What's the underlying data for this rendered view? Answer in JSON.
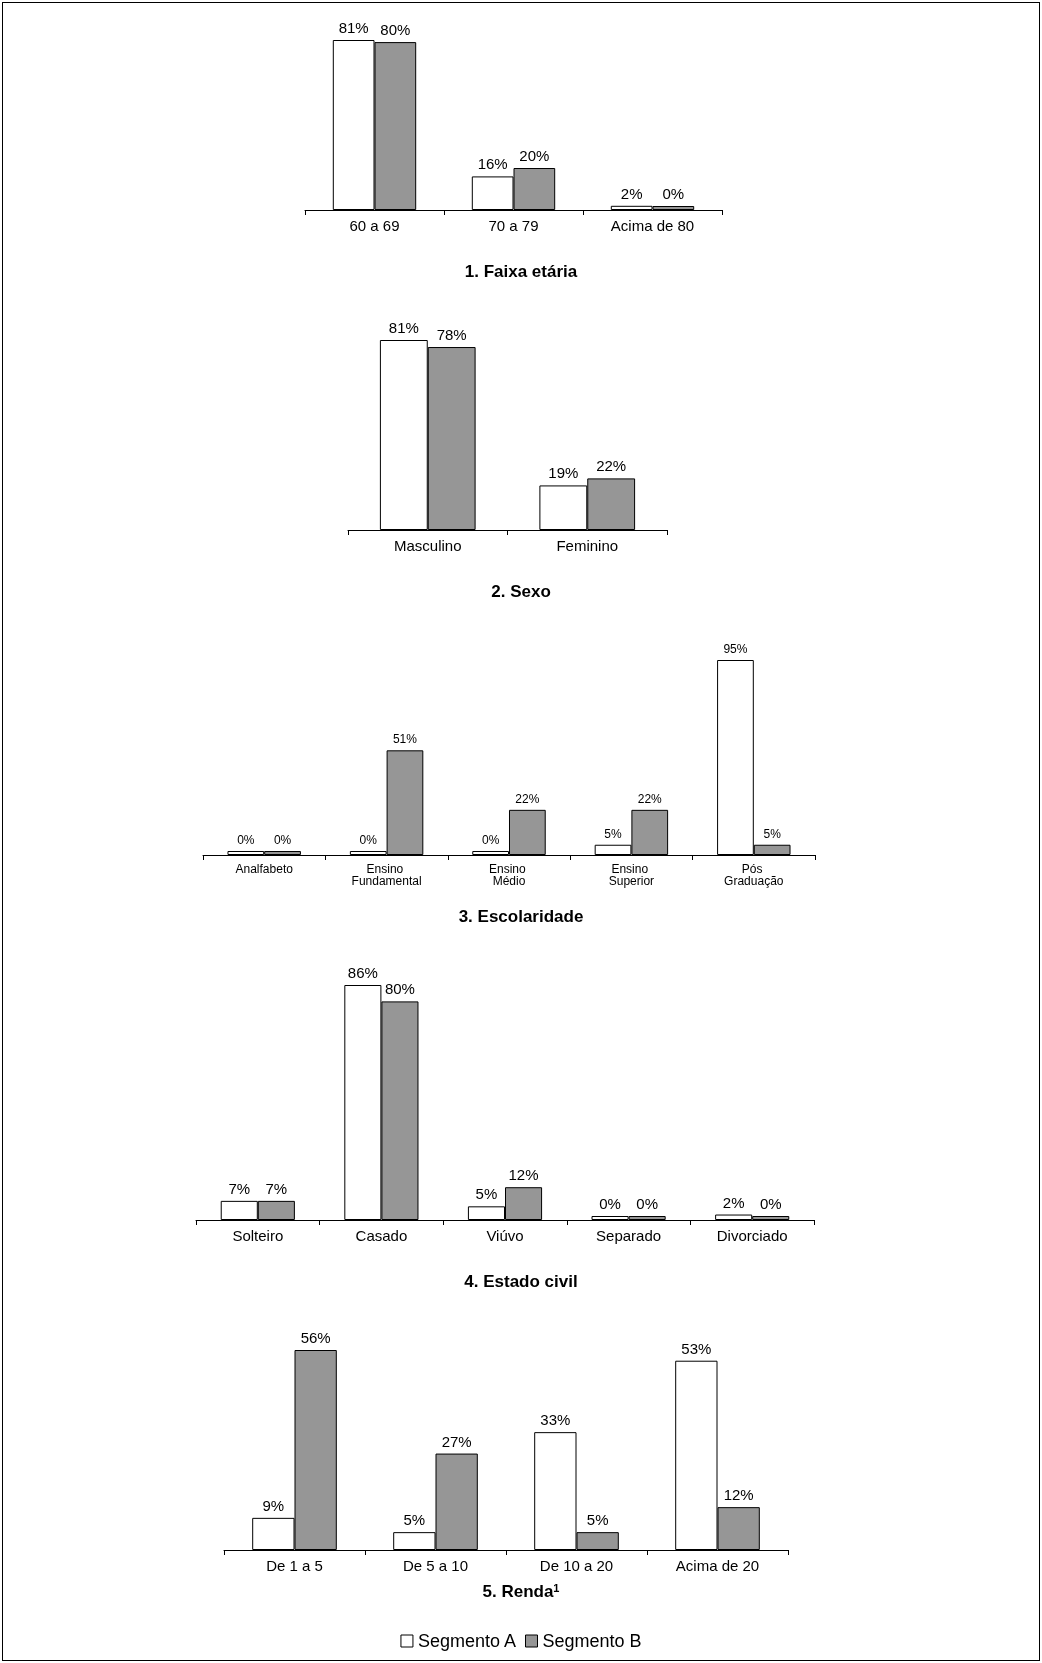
{
  "chart_data": [
    {
      "type": "bar",
      "title": "1. Faixa etária",
      "categories": [
        "60 a 69",
        "70 a 79",
        "Acima de 80"
      ],
      "series": [
        {
          "color": "#ffffff",
          "values": [
            81,
            16,
            2
          ],
          "value_labels": [
            "81%",
            "16%",
            "2%"
          ]
        },
        {
          "color": "#969696",
          "values": [
            80,
            20,
            0
          ],
          "value_labels": [
            "80%",
            "20%",
            "0%"
          ]
        }
      ]
    },
    {
      "type": "bar",
      "title": "2. Sexo",
      "categories": [
        "Masculino",
        "Feminino"
      ],
      "series": [
        {
          "color": "#ffffff",
          "values": [
            81,
            19
          ],
          "value_labels": [
            "81%",
            "19%"
          ]
        },
        {
          "color": "#969696",
          "values": [
            78,
            22
          ],
          "value_labels": [
            "78%",
            "22%"
          ]
        }
      ]
    },
    {
      "type": "bar",
      "title": "3. Escolaridade",
      "categories": [
        "Analfabeto",
        "Ensino Fundamental",
        "Ensino Médio",
        "Ensino Superior",
        "Pós Graduação"
      ],
      "series": [
        {
          "color": "#ffffff",
          "values": [
            0,
            0,
            0,
            5,
            95
          ],
          "value_labels": [
            "0%",
            "0%",
            "0%",
            "5%",
            "95%"
          ]
        },
        {
          "color": "#969696",
          "values": [
            0,
            51,
            22,
            22,
            5
          ],
          "value_labels": [
            "0%",
            "51%",
            "22%",
            "22%",
            "5%"
          ]
        }
      ]
    },
    {
      "type": "bar",
      "title": "4. Estado civil",
      "categories": [
        "Solteiro",
        "Casado",
        "Viúvo",
        "Separado",
        "Divorciado"
      ],
      "series": [
        {
          "color": "#ffffff",
          "values": [
            7,
            86,
            5,
            0,
            2
          ],
          "value_labels": [
            "7%",
            "86%",
            "5%",
            "0%",
            "2%"
          ]
        },
        {
          "color": "#969696",
          "values": [
            7,
            80,
            12,
            0,
            0
          ],
          "value_labels": [
            "7%",
            "80%",
            "12%",
            "0%",
            "0%"
          ]
        }
      ]
    },
    {
      "type": "bar",
      "title": "5. Renda$^{1}$",
      "categories": [
        "De 1 a 5",
        "De 5 a 10",
        "De 10 a 20",
        "Acima de 20"
      ],
      "legend": "bottom",
      "series": [
        {
          "name": "Segmento A",
          "color": "#ffffff",
          "values": [
            9,
            5,
            33,
            53
          ],
          "value_labels": [
            "9%",
            "5%",
            "33%",
            "53%"
          ]
        },
        {
          "name": "Segmento B",
          "color": "#969696",
          "values": [
            56,
            27,
            5,
            12
          ],
          "value_labels": [
            "56%",
            "27%",
            "5%",
            "12%"
          ]
        }
      ]
    }
  ]
}
